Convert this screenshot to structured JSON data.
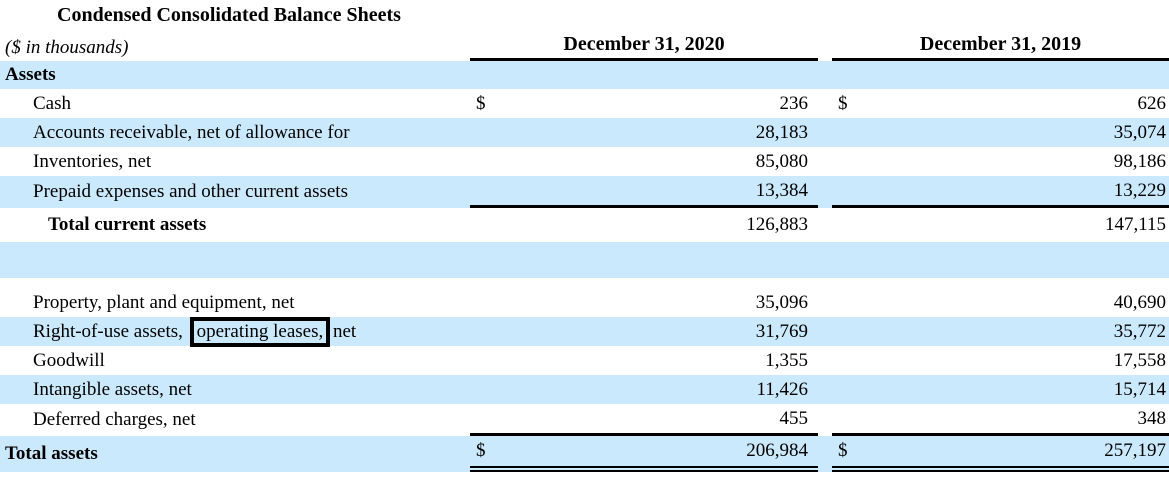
{
  "page": {
    "title": "Condensed Consolidated Balance Sheets",
    "units_note": "($ in thousands)"
  },
  "colors": {
    "row_highlight": "#CBE9FC",
    "text": "#000000",
    "annotation_border": "#000000"
  },
  "columns": {
    "c2020": "December 31, 2020",
    "c2019": "December 31, 2019"
  },
  "section": {
    "assets_label": "Assets"
  },
  "rows": [
    {
      "label": "Cash",
      "cur": "$",
      "v2020": "236",
      "v2019": "626"
    },
    {
      "label": "Accounts receivable, net of allowance for",
      "v2020": "28,183",
      "v2019": "35,074"
    },
    {
      "label": "Inventories, net",
      "v2020": "85,080",
      "v2019": "98,186"
    },
    {
      "label": "Prepaid expenses and other current assets",
      "v2020": "13,384",
      "v2019": "13,229"
    },
    {
      "label": "Total current assets",
      "v2020": "126,883",
      "v2019": "147,115"
    },
    {
      "label": "Property, plant and equipment, net",
      "v2020": "35,096",
      "v2019": "40,690"
    },
    {
      "label_prefix": "Right-of-use assets,",
      "label_boxed": "operating leases,",
      "label_suffix": "net",
      "v2020": "31,769",
      "v2019": "35,772"
    },
    {
      "label": "Goodwill",
      "v2020": "1,355",
      "v2019": "17,558"
    },
    {
      "label": "Intangible assets, net",
      "v2020": "11,426",
      "v2019": "15,714"
    },
    {
      "label": "Deferred charges, net",
      "v2020": "455",
      "v2019": "348"
    },
    {
      "label": "Total assets",
      "cur": "$",
      "v2020": "206,984",
      "v2019": "257,197"
    }
  ]
}
